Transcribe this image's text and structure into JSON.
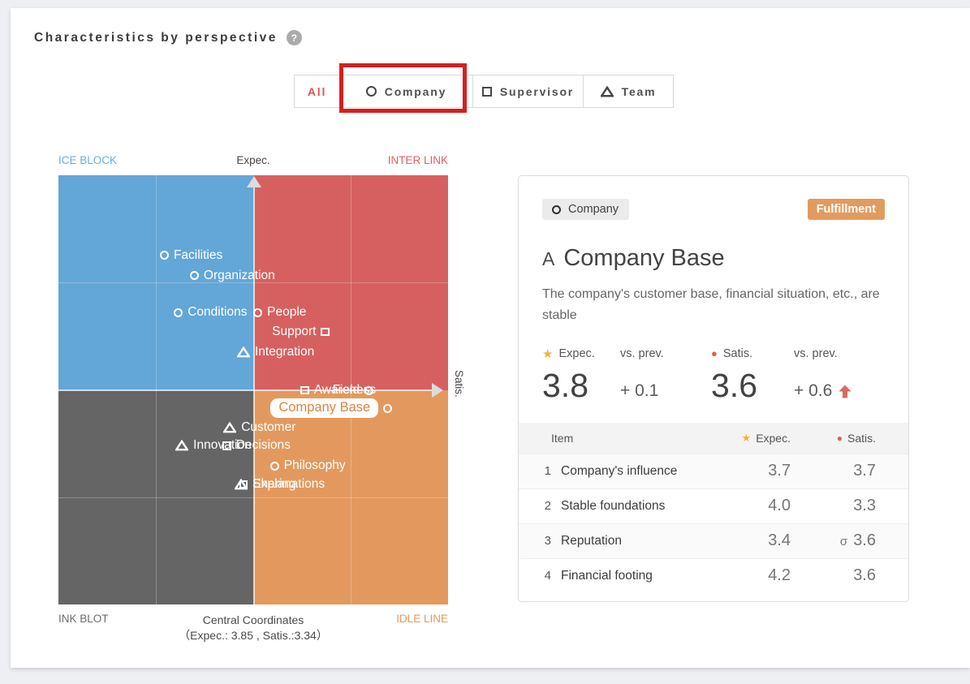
{
  "page": {
    "title": "Characteristics by perspective",
    "help": "?"
  },
  "tabs": {
    "items": [
      {
        "label": "All",
        "icon": "none",
        "active": true
      },
      {
        "label": "Company",
        "icon": "circle",
        "annotated": true
      },
      {
        "label": "Supervisor",
        "icon": "square"
      },
      {
        "label": "Team",
        "icon": "triangle"
      }
    ]
  },
  "chart_data": {
    "type": "scatter",
    "quadrant_labels": {
      "top_left": "ICE BLOCK",
      "top_right": "INTER LINK",
      "bottom_left": "INK BLOT",
      "bottom_right": "IDLE LINE"
    },
    "axes": {
      "vertical": "Expec.",
      "horizontal": "Satis."
    },
    "center_coordinates": {
      "expec": 3.85,
      "satis": 3.34
    },
    "footer_line1": "Central Coordinates",
    "footer_line2": "（Expec.: 3.85 , Satis.:3.34）",
    "quadrant_colors": {
      "top_left": "#63a6d8",
      "top_right": "#d66060",
      "bottom_left": "#666565",
      "bottom_right": "#e3995e"
    },
    "points": [
      {
        "label": "Facilities",
        "marker": "circle",
        "x": 27.7,
        "y": 18.7,
        "side": "right"
      },
      {
        "label": "Organization",
        "marker": "circle",
        "x": 35.4,
        "y": 23.4,
        "side": "right"
      },
      {
        "label": "Conditions",
        "marker": "circle",
        "x": 31.3,
        "y": 32.0,
        "side": "right"
      },
      {
        "label": "People",
        "marker": "circle",
        "x": 51.7,
        "y": 32.0,
        "side": "right"
      },
      {
        "label": "Support",
        "marker": "square",
        "x": 67.9,
        "y": 36.5,
        "side": "left"
      },
      {
        "label": "Integration",
        "marker": "triangle",
        "x": 47.5,
        "y": 41.2,
        "side": "right"
      },
      {
        "label": "Awareness",
        "marker": "square",
        "x": 63.8,
        "y": 50.1,
        "side": "right"
      },
      {
        "label": "Field",
        "marker": "circle",
        "x": 79.2,
        "y": 50.1,
        "side": "left"
      },
      {
        "label": "Company Base",
        "marker": "circle",
        "x": 84.0,
        "y": 54.3,
        "side": "left",
        "highlighted": true
      },
      {
        "label": "Customer",
        "marker": "triangle",
        "x": 44.0,
        "y": 58.8,
        "side": "right"
      },
      {
        "label": "Innovation",
        "marker": "triangle",
        "x": 31.7,
        "y": 63.0,
        "side": "right"
      },
      {
        "label": "Decisions",
        "marker": "square",
        "x": 43.8,
        "y": 63.0,
        "side": "right"
      },
      {
        "label": "Philosophy",
        "marker": "circle",
        "x": 56.0,
        "y": 67.7,
        "side": "right"
      },
      {
        "label": "Sharing",
        "marker": "triangle",
        "x": 46.9,
        "y": 72.0,
        "side": "right"
      },
      {
        "label": "Explanations",
        "marker": "square",
        "x": 48.1,
        "y": 72.0,
        "side": "right"
      }
    ]
  },
  "detail_card": {
    "perspective_chip": "Company",
    "status_badge": "Fulfillment",
    "grade": "A",
    "title": "Company Base",
    "description": "The company's customer base, financial situation, etc., are stable",
    "stats": {
      "expec_label": "Expec.",
      "expec_value": "3.8",
      "expec_vs_label": "vs. prev.",
      "expec_vs": "+ 0.1",
      "satis_label": "Satis.",
      "satis_value": "3.6",
      "satis_vs_label": "vs. prev.",
      "satis_vs": "+ 0.6",
      "satis_trend": "up"
    },
    "table": {
      "headers": {
        "item": "Item",
        "expec": "Expec.",
        "satis": "Satis."
      },
      "rows": [
        {
          "num": "1",
          "item": "Company's influence",
          "expec": "3.7",
          "satis": "3.7",
          "satis_prefix": ""
        },
        {
          "num": "2",
          "item": "Stable foundations",
          "expec": "4.0",
          "satis": "3.3",
          "satis_prefix": ""
        },
        {
          "num": "3",
          "item": "Reputation",
          "expec": "3.4",
          "satis": "3.6",
          "satis_prefix": "σ"
        },
        {
          "num": "4",
          "item": "Financial footing",
          "expec": "4.2",
          "satis": "3.6",
          "satis_prefix": ""
        }
      ]
    }
  }
}
